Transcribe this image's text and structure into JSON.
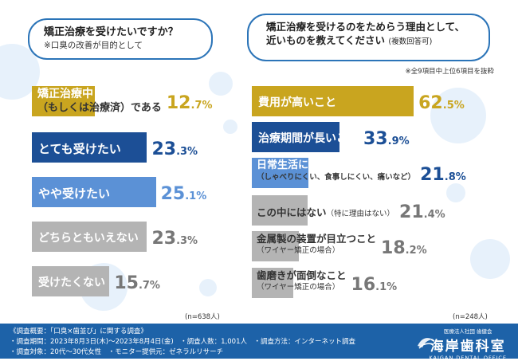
{
  "colors": {
    "gold": "#c9a51f",
    "navy": "#1c4f96",
    "blue": "#5b91d6",
    "gray": "#b4b4b4",
    "footer": "#1d62a8"
  },
  "left": {
    "question": "矯正治療を受けたいですか？",
    "subtitle": "※口臭の改善が目的として",
    "n": "(n=638人)",
    "chart_data": {
      "type": "bar",
      "orientation": "horizontal",
      "unit": "%",
      "categories": [
        "矯正治療中（もしくは治療済）である",
        "とても受けたい",
        "やや受けたい",
        "どちらともいえない",
        "受けたくない"
      ],
      "values": [
        12.7,
        23.3,
        25.1,
        23.3,
        15.7
      ]
    },
    "rows": [
      {
        "label_line1": "矯正治療中",
        "label_line2": "（もしくは治療済）である",
        "pct_int": "12",
        "pct_dec": ".7%"
      },
      {
        "label": "とても受けたい",
        "pct_int": "23",
        "pct_dec": ".3%"
      },
      {
        "label": "やや受けたい",
        "pct_int": "25",
        "pct_dec": ".1%"
      },
      {
        "label": "どちらともいえない",
        "pct_int": "23",
        "pct_dec": ".3%"
      },
      {
        "label": "受けたくない",
        "pct_int": "15",
        "pct_dec": ".7%"
      }
    ]
  },
  "right": {
    "question_line1": "矯正治療を受けるのをためらう理由として、",
    "question_line2": "近いものを教えてください",
    "question_sub": "(複数回答可)",
    "note": "※全9項目中上位6項目を抜粋",
    "n": "(n=248人)",
    "chart_data": {
      "type": "bar",
      "orientation": "horizontal",
      "unit": "%",
      "categories": [
        "費用が高いこと",
        "治療期間が長いこと",
        "日常生活に支障があること（しゃべりにくい、食事しにくい、痛いなど）",
        "この中にはない（特に理由はない）",
        "金属製の装置が目立つこと（ワイヤー矯正の場合）",
        "歯磨きが面倒なこと（ワイヤー矯正の場合）"
      ],
      "values": [
        62.5,
        33.9,
        21.8,
        21.4,
        18.2,
        16.1
      ]
    },
    "rows": [
      {
        "label": "費用が高いこと",
        "pct_int": "62",
        "pct_dec": ".5%"
      },
      {
        "label": "治療期間が長いこと",
        "pct_int": "33",
        "pct_dec": ".9%"
      },
      {
        "label": "日常生活に支障があること",
        "sub": "（しゃべりにくい、食事しにくい、痛いなど）",
        "pct_int": "21",
        "pct_dec": ".8%"
      },
      {
        "label": "この中にはない",
        "sub": "（特に理由はない）",
        "pct_int": "21",
        "pct_dec": ".4%"
      },
      {
        "label": "金属製の装置が目立つこと",
        "sub": "（ワイヤー矯正の場合）",
        "pct_int": "18",
        "pct_dec": ".2%"
      },
      {
        "label": "歯磨きが面倒なこと",
        "sub": "（ワイヤー矯正の場合）",
        "pct_int": "16",
        "pct_dec": ".1%"
      }
    ]
  },
  "footer": {
    "line1": "《調査概要：「口臭×歯並び」に関する調査》",
    "line2": "・調査期間：2023年8月3日(木)〜2023年8月4日(金)　・調査人数：1,001人　・調査方法：インターネット調査",
    "line3": "・調査対象：20代〜30代女性　・モニター提供元：ゼネラルリサーチ",
    "logo_top": "医療法人社団 歯健会",
    "logo_name": "海岸歯科室",
    "logo_roman": "KAIGAN DENTAL OFFICE"
  }
}
